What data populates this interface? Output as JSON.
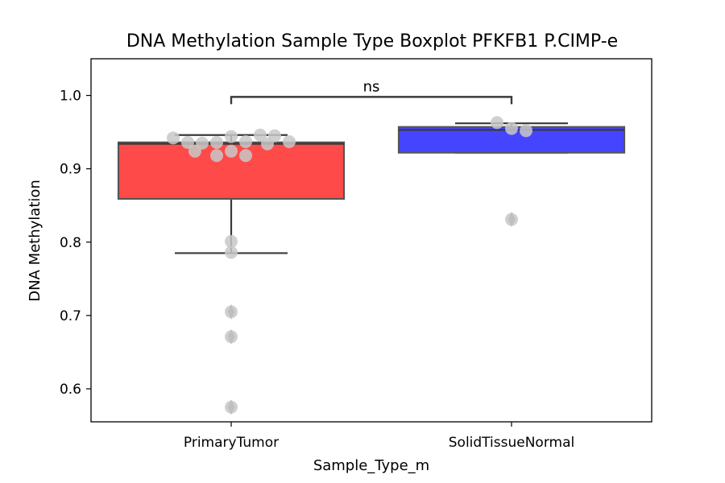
{
  "chart_data": {
    "type": "box",
    "title": "DNA Methylation Sample Type Boxplot PFKFB1 P.CIMP-e",
    "xlabel": "Sample_Type_m",
    "ylabel": "DNA Methylation",
    "ylim": [
      0.555,
      1.05
    ],
    "yticks": [
      0.6,
      0.7,
      0.8,
      0.9,
      1.0
    ],
    "ytick_labels": [
      "0.6",
      "0.7",
      "0.8",
      "0.9",
      "1.0"
    ],
    "categories": [
      "PrimaryTumor",
      "SolidTissueNormal"
    ],
    "boxes": [
      {
        "category": "PrimaryTumor",
        "color": "#ff4a4a",
        "q1": 0.859,
        "median": 0.934,
        "q3": 0.936,
        "whisker_low": 0.785,
        "whisker_high": 0.946,
        "outliers": [
          0.705,
          0.671,
          0.575
        ],
        "points": [
          0.944,
          0.937,
          0.936,
          0.946,
          0.935,
          0.934,
          0.945,
          0.936,
          0.937,
          0.942,
          0.924,
          0.918,
          0.918,
          0.924,
          0.801,
          0.786,
          0.705,
          0.671,
          0.575
        ]
      },
      {
        "category": "SolidTissueNormal",
        "color": "#4545ff",
        "q1": 0.922,
        "median": 0.953,
        "q3": 0.957,
        "whisker_low": 0.922,
        "whisker_high": 0.962,
        "outliers": [
          0.831
        ],
        "points": [
          0.955,
          0.952,
          0.963,
          0.831
        ]
      }
    ],
    "annotation": {
      "text": "ns",
      "y": 0.998
    },
    "point_color": "#c8c8c8",
    "outlier_color": "#8c8c8c"
  }
}
